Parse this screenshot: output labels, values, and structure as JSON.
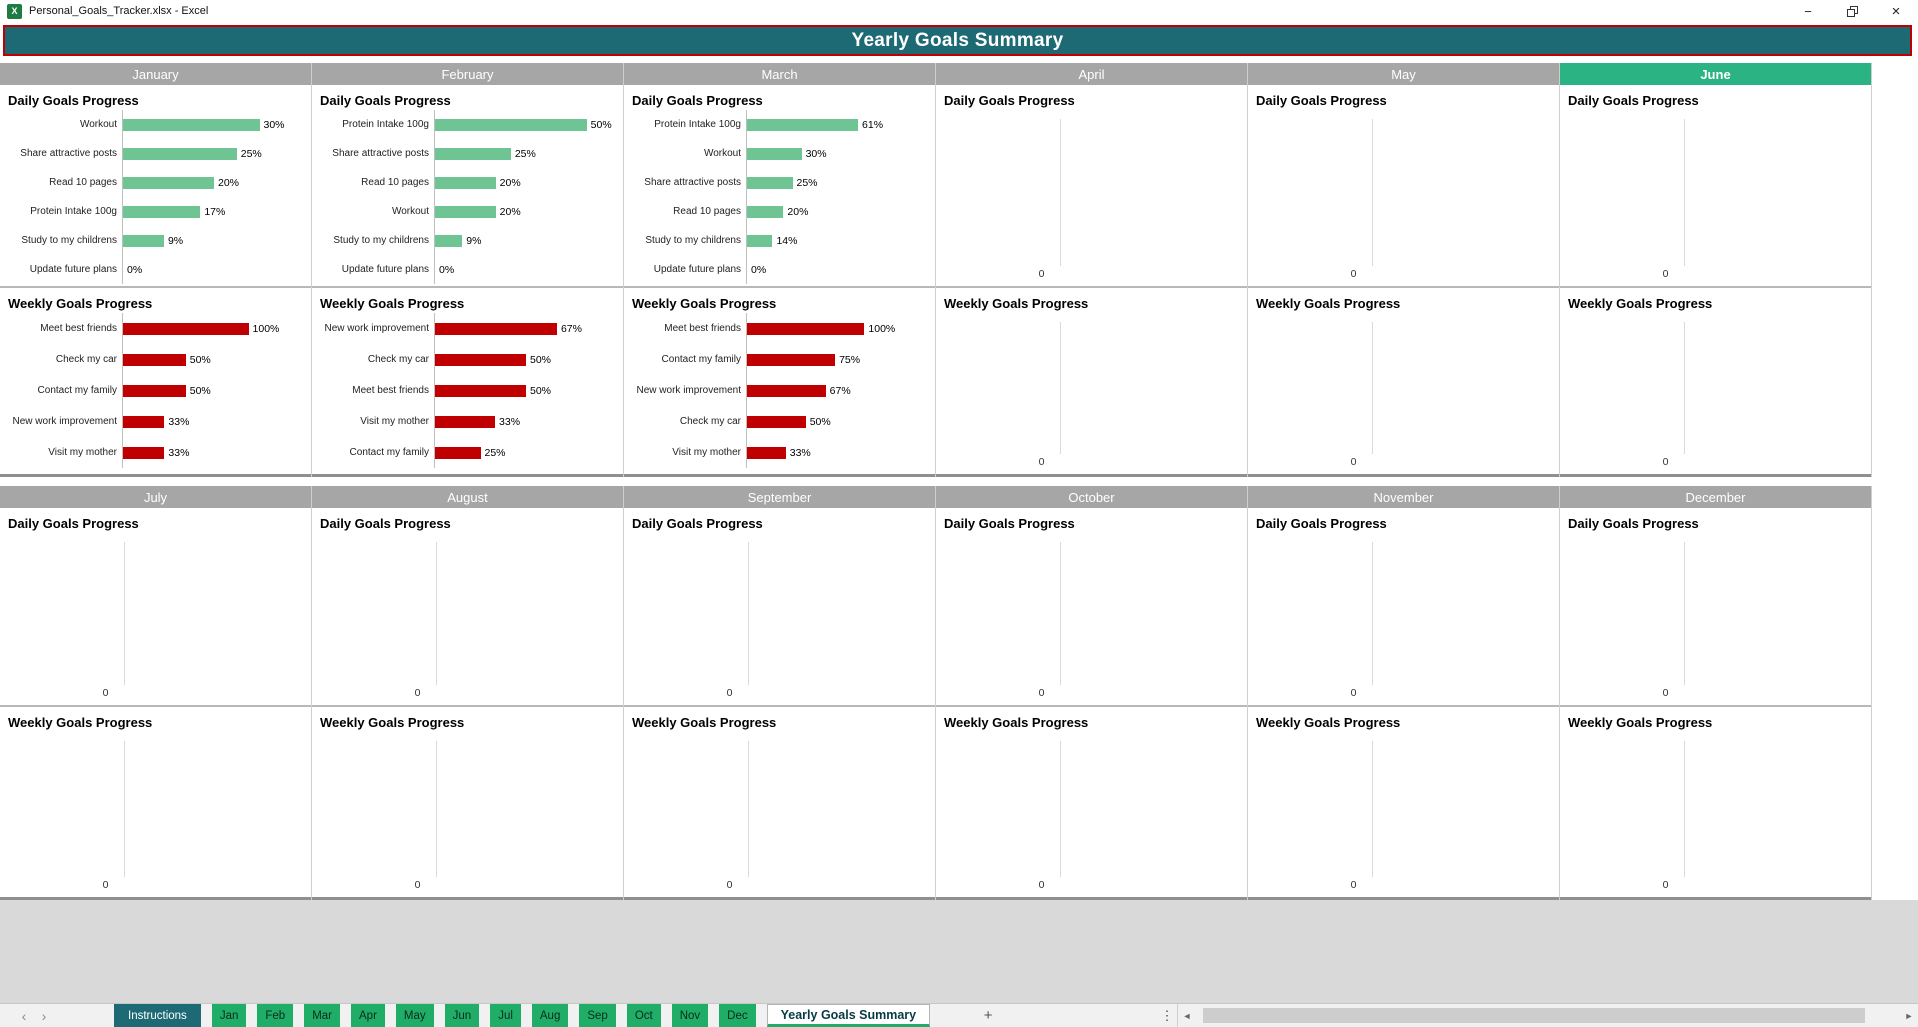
{
  "window": {
    "title": "Personal_Goals_Tracker.xlsx - Excel"
  },
  "icons": {
    "excel_logo": "X",
    "minimize": "−",
    "close": "×",
    "nav_left": "‹",
    "nav_right": "›",
    "add_sheet": "+",
    "more": "⋮",
    "scroll_left": "◄",
    "scroll_right": "►"
  },
  "banner": {
    "title": "Yearly Goals Summary"
  },
  "colors": {
    "banner_bg": "#1D6A75",
    "banner_border": "#C00000",
    "month_header_bg": "#A6A6A6",
    "month_highlight_bg": "#2BB384",
    "daily_bar": "#6EC492",
    "weekly_bar": "#C00000",
    "tab_green": "#1FAD67",
    "tab_dark": "#1D6A75"
  },
  "months": [
    {
      "name": "January",
      "daily": {
        "title": "Daily Goals Progress",
        "type": "bar",
        "xmax": 40,
        "categories": [
          "Workout",
          "Share attractive posts",
          "Read 10 pages",
          "Protein Intake 100g",
          "Study to my childrens",
          "Update future plans"
        ],
        "values": [
          30,
          25,
          20,
          17,
          9,
          0
        ],
        "value_labels": [
          "30%",
          "25%",
          "20%",
          "17%",
          "9%",
          "0%"
        ]
      },
      "weekly": {
        "title": "Weekly Goals Progress",
        "type": "bar",
        "xmax": 145,
        "categories": [
          "Meet best friends",
          "Check my car",
          "Contact my family",
          "New work improvement",
          "Visit my mother"
        ],
        "values": [
          100,
          50,
          50,
          33,
          33
        ],
        "value_labels": [
          "100%",
          "50%",
          "50%",
          "33%",
          "33%"
        ]
      }
    },
    {
      "name": "February",
      "daily": {
        "title": "Daily Goals Progress",
        "type": "bar",
        "xmax": 60,
        "categories": [
          "Protein Intake 100g",
          "Share attractive posts",
          "Read 10 pages",
          "Workout",
          "Study to my childrens",
          "Update future plans"
        ],
        "values": [
          50,
          25,
          20,
          20,
          9,
          0
        ],
        "value_labels": [
          "50%",
          "25%",
          "20%",
          "20%",
          "9%",
          "0%"
        ]
      },
      "weekly": {
        "title": "Weekly Goals Progress",
        "type": "bar",
        "xmax": 100,
        "categories": [
          "New work improvement",
          "Check my car",
          "Meet best friends",
          "Visit my mother",
          "Contact my family"
        ],
        "values": [
          67,
          50,
          50,
          33,
          25
        ],
        "value_labels": [
          "67%",
          "50%",
          "50%",
          "33%",
          "25%"
        ]
      }
    },
    {
      "name": "March",
      "daily": {
        "title": "Daily Goals Progress",
        "type": "bar",
        "xmax": 100,
        "categories": [
          "Protein Intake 100g",
          "Workout",
          "Share attractive posts",
          "Read 10 pages",
          "Study to my childrens",
          "Update future plans"
        ],
        "values": [
          61,
          30,
          25,
          20,
          14,
          0
        ],
        "value_labels": [
          "61%",
          "30%",
          "25%",
          "20%",
          "14%",
          "0%"
        ]
      },
      "weekly": {
        "title": "Weekly Goals Progress",
        "type": "bar",
        "xmax": 155,
        "categories": [
          "Meet best friends",
          "Contact my family",
          "New work improvement",
          "Check my car",
          "Visit my mother"
        ],
        "values": [
          100,
          75,
          67,
          50,
          33
        ],
        "value_labels": [
          "100%",
          "75%",
          "67%",
          "50%",
          "33%"
        ]
      }
    },
    {
      "name": "April",
      "daily": {
        "title": "Daily Goals Progress",
        "type": "bar",
        "empty": true,
        "zero_label": "0"
      },
      "weekly": {
        "title": "Weekly Goals Progress",
        "type": "bar",
        "empty": true,
        "zero_label": "0"
      }
    },
    {
      "name": "May",
      "daily": {
        "title": "Daily Goals Progress",
        "type": "bar",
        "empty": true,
        "zero_label": "0"
      },
      "weekly": {
        "title": "Weekly Goals Progress",
        "type": "bar",
        "empty": true,
        "zero_label": "0"
      }
    },
    {
      "name": "June",
      "highlight": true,
      "daily": {
        "title": "Daily Goals Progress",
        "type": "bar",
        "empty": true,
        "zero_label": "0"
      },
      "weekly": {
        "title": "Weekly Goals Progress",
        "type": "bar",
        "empty": true,
        "zero_label": "0"
      }
    },
    {
      "name": "July",
      "daily": {
        "title": "Daily Goals Progress",
        "type": "bar",
        "empty": true,
        "zero_label": "0"
      },
      "weekly": {
        "title": "Weekly Goals Progress",
        "type": "bar",
        "empty": true,
        "zero_label": "0"
      }
    },
    {
      "name": "August",
      "daily": {
        "title": "Daily Goals Progress",
        "type": "bar",
        "empty": true,
        "zero_label": "0"
      },
      "weekly": {
        "title": "Weekly Goals Progress",
        "type": "bar",
        "empty": true,
        "zero_label": "0"
      }
    },
    {
      "name": "September",
      "daily": {
        "title": "Daily Goals Progress",
        "type": "bar",
        "empty": true,
        "zero_label": "0"
      },
      "weekly": {
        "title": "Weekly Goals Progress",
        "type": "bar",
        "empty": true,
        "zero_label": "0"
      }
    },
    {
      "name": "October",
      "daily": {
        "title": "Daily Goals Progress",
        "type": "bar",
        "empty": true,
        "zero_label": "0"
      },
      "weekly": {
        "title": "Weekly Goals Progress",
        "type": "bar",
        "empty": true,
        "zero_label": "0"
      }
    },
    {
      "name": "November",
      "daily": {
        "title": "Daily Goals Progress",
        "type": "bar",
        "empty": true,
        "zero_label": "0"
      },
      "weekly": {
        "title": "Weekly Goals Progress",
        "type": "bar",
        "empty": true,
        "zero_label": "0"
      }
    },
    {
      "name": "December",
      "daily": {
        "title": "Daily Goals Progress",
        "type": "bar",
        "empty": true,
        "zero_label": "0"
      },
      "weekly": {
        "title": "Weekly Goals Progress",
        "type": "bar",
        "empty": true,
        "zero_label": "0"
      }
    }
  ],
  "sheet_bar": {
    "tabs": [
      {
        "label": "Instructions",
        "style": "dark"
      },
      {
        "label": "Jan",
        "style": "green"
      },
      {
        "label": "Feb",
        "style": "green"
      },
      {
        "label": "Mar",
        "style": "green"
      },
      {
        "label": "Apr",
        "style": "green"
      },
      {
        "label": "May",
        "style": "green"
      },
      {
        "label": "Jun",
        "style": "green"
      },
      {
        "label": "Jul",
        "style": "green"
      },
      {
        "label": "Aug",
        "style": "green"
      },
      {
        "label": "Sep",
        "style": "green"
      },
      {
        "label": "Oct",
        "style": "green"
      },
      {
        "label": "Nov",
        "style": "green"
      },
      {
        "label": "Dec",
        "style": "green"
      },
      {
        "label": "Yearly Goals Summary",
        "style": "active"
      }
    ]
  }
}
